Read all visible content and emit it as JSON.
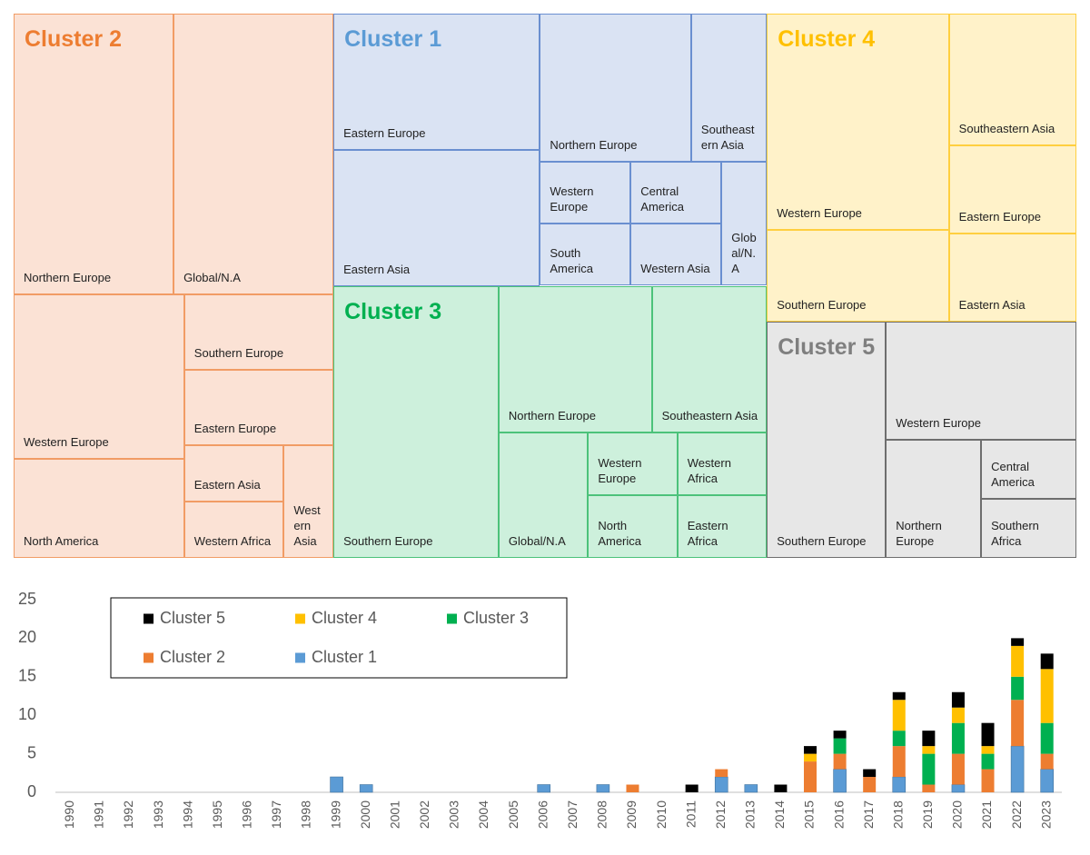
{
  "chart_data": [
    {
      "type": "treemap",
      "groups": [
        {
          "name": "Cluster 2",
          "color": "#ed7d31",
          "fill": "#fbe2d5",
          "edge": "#f19c65",
          "labels": [
            "Northern Europe",
            "Global/N.A",
            "Western Europe",
            "North America",
            "Southern Europe",
            "Eastern Europe",
            "Eastern Asia",
            "Western Africa",
            "Western Asia"
          ],
          "values": [
            8,
            8,
            5,
            3,
            2,
            2,
            1,
            1,
            1
          ]
        },
        {
          "name": "Cluster 1",
          "color": "#5b9bd5",
          "fill": "#dae3f3",
          "edge": "#6a8fd0",
          "labels": [
            "Eastern Europe",
            "Eastern Asia",
            "Northern Europe",
            "Southeastern Asia",
            "Western Europe",
            "South America",
            "Central America",
            "Western Asia",
            "Global/N.A"
          ],
          "values": [
            5,
            5,
            4,
            2,
            1,
            1,
            1,
            1,
            1
          ]
        },
        {
          "name": "Cluster 3",
          "color": "#00b050",
          "fill": "#cdf0dc",
          "edge": "#4cc27a",
          "labels": [
            "Southern Europe",
            "Northern Europe",
            "Southeastern Asia",
            "Global/N.A",
            "Western Europe",
            "North America",
            "Western Africa",
            "Eastern Africa"
          ],
          "values": [
            8,
            4,
            3,
            2,
            1,
            1,
            1,
            1
          ]
        },
        {
          "name": "Cluster 4",
          "color": "#ffc000",
          "fill": "#fff2c9",
          "edge": "#ffcf3f",
          "labels": [
            "Western Europe",
            "Southern Europe",
            "Southeastern Asia",
            "Eastern Europe",
            "Eastern Asia"
          ],
          "values": [
            7,
            3,
            3,
            2,
            2
          ]
        },
        {
          "name": "Cluster 5",
          "color": "#7f7f7f",
          "fill": "#e7e7e7",
          "edge": "#6e6e6e",
          "labels": [
            "Southern Europe",
            "Western Europe",
            "Northern Europe",
            "Central America",
            "Southern Africa"
          ],
          "values": [
            5,
            4,
            2,
            1,
            1
          ]
        }
      ]
    },
    {
      "type": "bar",
      "stacked": true,
      "legend": "upper left",
      "categories": [
        "1990",
        "1991",
        "1992",
        "1993",
        "1994",
        "1995",
        "1996",
        "1997",
        "1998",
        "1999",
        "2000",
        "2001",
        "2002",
        "2003",
        "2004",
        "2005",
        "2006",
        "2007",
        "2008",
        "2009",
        "2010",
        "2011",
        "2012",
        "2013",
        "2014",
        "2015",
        "2016",
        "2017",
        "2018",
        "2019",
        "2020",
        "2021",
        "2022",
        "2023"
      ],
      "series": [
        {
          "name": "Cluster 1",
          "color": "#5b9bd5",
          "values": [
            0,
            0,
            0,
            0,
            0,
            0,
            0,
            0,
            0,
            2,
            1,
            0,
            0,
            0,
            0,
            0,
            1,
            0,
            1,
            0,
            0,
            0,
            2,
            1,
            0,
            0,
            3,
            0,
            2,
            0,
            1,
            0,
            6,
            3
          ]
        },
        {
          "name": "Cluster 2",
          "color": "#ed7d31",
          "values": [
            0,
            0,
            0,
            0,
            0,
            0,
            0,
            0,
            0,
            0,
            0,
            0,
            0,
            0,
            0,
            0,
            0,
            0,
            0,
            1,
            0,
            0,
            1,
            0,
            0,
            4,
            2,
            2,
            4,
            1,
            4,
            3,
            6,
            2
          ]
        },
        {
          "name": "Cluster 3",
          "color": "#00b050",
          "values": [
            0,
            0,
            0,
            0,
            0,
            0,
            0,
            0,
            0,
            0,
            0,
            0,
            0,
            0,
            0,
            0,
            0,
            0,
            0,
            0,
            0,
            0,
            0,
            0,
            0,
            0,
            2,
            0,
            2,
            4,
            4,
            2,
            3,
            4
          ]
        },
        {
          "name": "Cluster 4",
          "color": "#ffc000",
          "values": [
            0,
            0,
            0,
            0,
            0,
            0,
            0,
            0,
            0,
            0,
            0,
            0,
            0,
            0,
            0,
            0,
            0,
            0,
            0,
            0,
            0,
            0,
            0,
            0,
            0,
            1,
            0,
            0,
            4,
            1,
            2,
            1,
            4,
            7
          ]
        },
        {
          "name": "Cluster 5",
          "color": "#000000",
          "values": [
            0,
            0,
            0,
            0,
            0,
            0,
            0,
            0,
            0,
            0,
            0,
            0,
            0,
            0,
            0,
            0,
            0,
            0,
            0,
            0,
            0,
            1,
            0,
            0,
            1,
            1,
            1,
            1,
            1,
            2,
            2,
            3,
            1,
            2
          ]
        }
      ],
      "ylim": [
        0,
        25
      ],
      "yticks": [
        0,
        5,
        10,
        15,
        20,
        25
      ]
    }
  ]
}
